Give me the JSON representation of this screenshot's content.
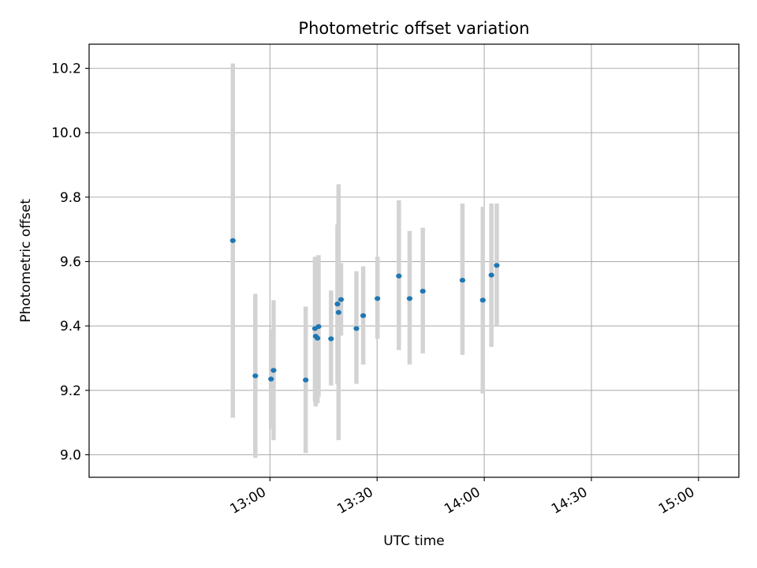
{
  "chart_data": {
    "type": "scatter",
    "title": "Photometric offset variation",
    "xlabel": "UTC time",
    "ylabel": "Photometric offset",
    "x_unit": "minutes since 00:00 UTC",
    "xlim": [
      729.35,
      911.3
    ],
    "ylim": [
      8.93,
      10.275
    ],
    "grid": true,
    "x_ticks": [
      {
        "value": 780,
        "label": "13:00"
      },
      {
        "value": 810,
        "label": "13:30"
      },
      {
        "value": 840,
        "label": "14:00"
      },
      {
        "value": 870,
        "label": "14:30"
      },
      {
        "value": 900,
        "label": "15:00"
      }
    ],
    "y_ticks": [
      {
        "value": 9.0,
        "label": "9.0"
      },
      {
        "value": 9.2,
        "label": "9.2"
      },
      {
        "value": 9.4,
        "label": "9.4"
      },
      {
        "value": 9.6,
        "label": "9.6"
      },
      {
        "value": 9.8,
        "label": "9.8"
      },
      {
        "value": 10.0,
        "label": "10.0"
      },
      {
        "value": 10.2,
        "label": "10.2"
      }
    ],
    "marker_color": "#1f77b4",
    "errorbar_color": "#d3d3d3",
    "points": [
      {
        "x": 769.6,
        "y": 9.665,
        "ylow": 9.115,
        "yhigh": 10.215
      },
      {
        "x": 775.9,
        "y": 9.245,
        "ylow": 8.99,
        "yhigh": 9.5
      },
      {
        "x": 780.3,
        "y": 9.235,
        "ylow": 9.08,
        "yhigh": 9.39
      },
      {
        "x": 781.0,
        "y": 9.262,
        "ylow": 9.045,
        "yhigh": 9.48
      },
      {
        "x": 790.0,
        "y": 9.232,
        "ylow": 9.005,
        "yhigh": 9.46
      },
      {
        "x": 792.6,
        "y": 9.392,
        "ylow": 9.165,
        "yhigh": 9.615
      },
      {
        "x": 792.8,
        "y": 9.368,
        "ylow": 9.15,
        "yhigh": 9.58
      },
      {
        "x": 793.3,
        "y": 9.362,
        "ylow": 9.16,
        "yhigh": 9.565
      },
      {
        "x": 793.6,
        "y": 9.398,
        "ylow": 9.18,
        "yhigh": 9.62
      },
      {
        "x": 797.1,
        "y": 9.36,
        "ylow": 9.215,
        "yhigh": 9.51
      },
      {
        "x": 798.9,
        "y": 9.468,
        "ylow": 9.22,
        "yhigh": 9.715
      },
      {
        "x": 799.2,
        "y": 9.442,
        "ylow": 9.045,
        "yhigh": 9.84
      },
      {
        "x": 799.9,
        "y": 9.482,
        "ylow": 9.37,
        "yhigh": 9.595
      },
      {
        "x": 804.2,
        "y": 9.392,
        "ylow": 9.22,
        "yhigh": 9.57
      },
      {
        "x": 806.1,
        "y": 9.432,
        "ylow": 9.28,
        "yhigh": 9.585
      },
      {
        "x": 810.1,
        "y": 9.485,
        "ylow": 9.36,
        "yhigh": 9.615
      },
      {
        "x": 816.1,
        "y": 9.555,
        "ylow": 9.325,
        "yhigh": 9.79
      },
      {
        "x": 819.1,
        "y": 9.485,
        "ylow": 9.28,
        "yhigh": 9.695
      },
      {
        "x": 822.8,
        "y": 9.508,
        "ylow": 9.315,
        "yhigh": 9.705
      },
      {
        "x": 833.9,
        "y": 9.542,
        "ylow": 9.31,
        "yhigh": 9.78
      },
      {
        "x": 839.6,
        "y": 9.48,
        "ylow": 9.19,
        "yhigh": 9.77
      },
      {
        "x": 842.0,
        "y": 9.558,
        "ylow": 9.335,
        "yhigh": 9.78
      },
      {
        "x": 843.5,
        "y": 9.588,
        "ylow": 9.4,
        "yhigh": 9.78
      }
    ]
  }
}
